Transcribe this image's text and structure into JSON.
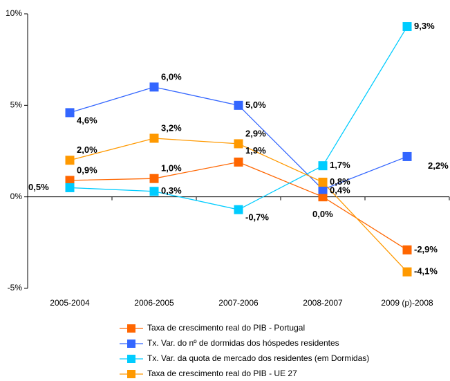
{
  "chart_data": {
    "type": "line",
    "categories": [
      "2005-2004",
      "2006-2005",
      "2007-2006",
      "2008-2007",
      "2009 (p)-2008"
    ],
    "series": [
      {
        "name": "Taxa de crescimento real do PIB - Portugal",
        "color": "#ff6600",
        "values": [
          0.9,
          1.0,
          1.9,
          0.0,
          -2.9
        ],
        "value_labels": [
          "0,9%",
          "1,0%",
          "1,9%",
          "0,0%",
          "-2,9%"
        ]
      },
      {
        "name": "Tx. Var. do nº de dormidas dos hóspedes residentes",
        "color": "#3366ff",
        "values": [
          4.6,
          6.0,
          5.0,
          0.4,
          2.2
        ],
        "value_labels": [
          "4,6%",
          "6,0%",
          "5,0%",
          "0,4%",
          "2,2%"
        ]
      },
      {
        "name": "Tx. Var. da quota de mercado dos residentes (em Dormidas)",
        "color": "#00ccff",
        "values": [
          0.5,
          0.3,
          -0.7,
          1.7,
          9.3
        ],
        "value_labels": [
          "0,5%",
          "0,3%",
          "-0,7%",
          "1,7%",
          "9,3%"
        ]
      },
      {
        "name": "Taxa de crescimento real do PIB - UE 27",
        "color": "#ff9900",
        "values": [
          2.0,
          3.2,
          2.9,
          0.8,
          -4.1
        ],
        "value_labels": [
          "2,0%",
          "3,2%",
          "2,9%",
          "0,8%",
          "-4,1%"
        ]
      }
    ],
    "ylim": [
      -5,
      10
    ],
    "yticks": [
      {
        "value": -5,
        "label": "-5%"
      },
      {
        "value": 0,
        "label": "0%"
      },
      {
        "value": 5,
        "label": "5%"
      },
      {
        "value": 10,
        "label": "10%"
      }
    ]
  }
}
